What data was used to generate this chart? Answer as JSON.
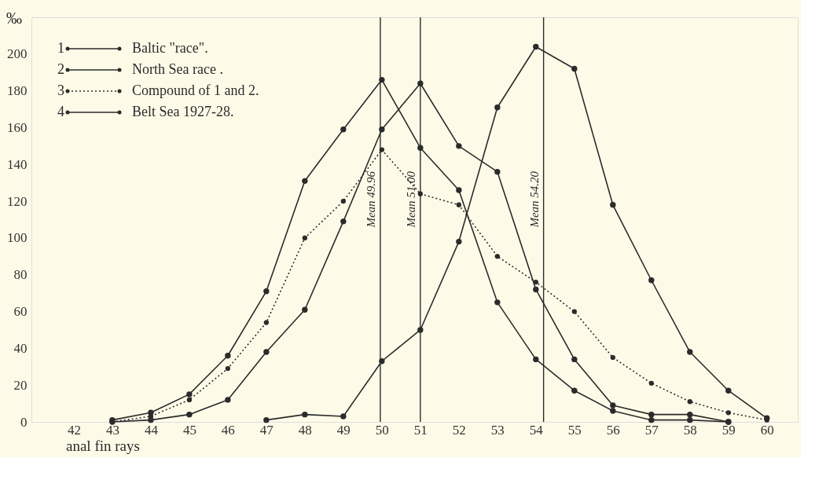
{
  "chart_data": {
    "type": "line",
    "xlabel": "anal fin rays",
    "ylabel": "‰",
    "x": [
      43,
      44,
      45,
      46,
      47,
      48,
      49,
      50,
      51,
      52,
      53,
      54,
      55,
      56,
      57,
      58,
      59,
      60
    ],
    "xlim": [
      40.9,
      60.8
    ],
    "xticks": [
      42,
      43,
      44,
      45,
      46,
      47,
      48,
      49,
      50,
      51,
      52,
      53,
      54,
      55,
      56,
      57,
      58,
      59,
      60
    ],
    "ylim": [
      0,
      220
    ],
    "yticks": [
      0,
      20,
      40,
      60,
      80,
      100,
      120,
      140,
      160,
      180,
      200
    ],
    "series": [
      {
        "name": "Baltic \"race\".",
        "color": "#2b2b2b",
        "line_style": "solid",
        "values": [
          1,
          5,
          15,
          36,
          71,
          131,
          159,
          186,
          149,
          126,
          65,
          34,
          17,
          6,
          1,
          1,
          0,
          null
        ]
      },
      {
        "name": "North Sea race .",
        "color": "#2b2b2b",
        "line_style": "solid",
        "values": [
          null,
          null,
          null,
          null,
          1,
          4,
          3,
          33,
          50,
          98,
          171,
          204,
          192,
          118,
          77,
          38,
          17,
          2
        ]
      },
      {
        "name": "Compound of 1 and 2.",
        "color": "#2b2b2b",
        "line_style": "dotted",
        "values": [
          0,
          3,
          12,
          29,
          54,
          100,
          120,
          148,
          124,
          118,
          90,
          76,
          60,
          35,
          21,
          11,
          5,
          1
        ]
      },
      {
        "name": "Belt Sea 1927-28.",
        "color": "#2b2b2b",
        "line_style": "solid",
        "values": [
          0,
          1,
          4,
          12,
          38,
          61,
          109,
          159,
          184,
          150,
          136,
          72,
          34,
          9,
          4,
          4,
          0,
          null
        ]
      }
    ],
    "ref_lines": [
      {
        "axis": "x",
        "value": 49.96,
        "label": "Mean 49.96"
      },
      {
        "axis": "x",
        "value": 51.0,
        "label": "Mean 51.00"
      },
      {
        "axis": "x",
        "value": 54.2,
        "label": "Mean 54.20"
      }
    ],
    "annotations": [
      "1",
      "2",
      "3",
      "4"
    ],
    "marker": "circle",
    "grid": false,
    "legend": "top left"
  }
}
